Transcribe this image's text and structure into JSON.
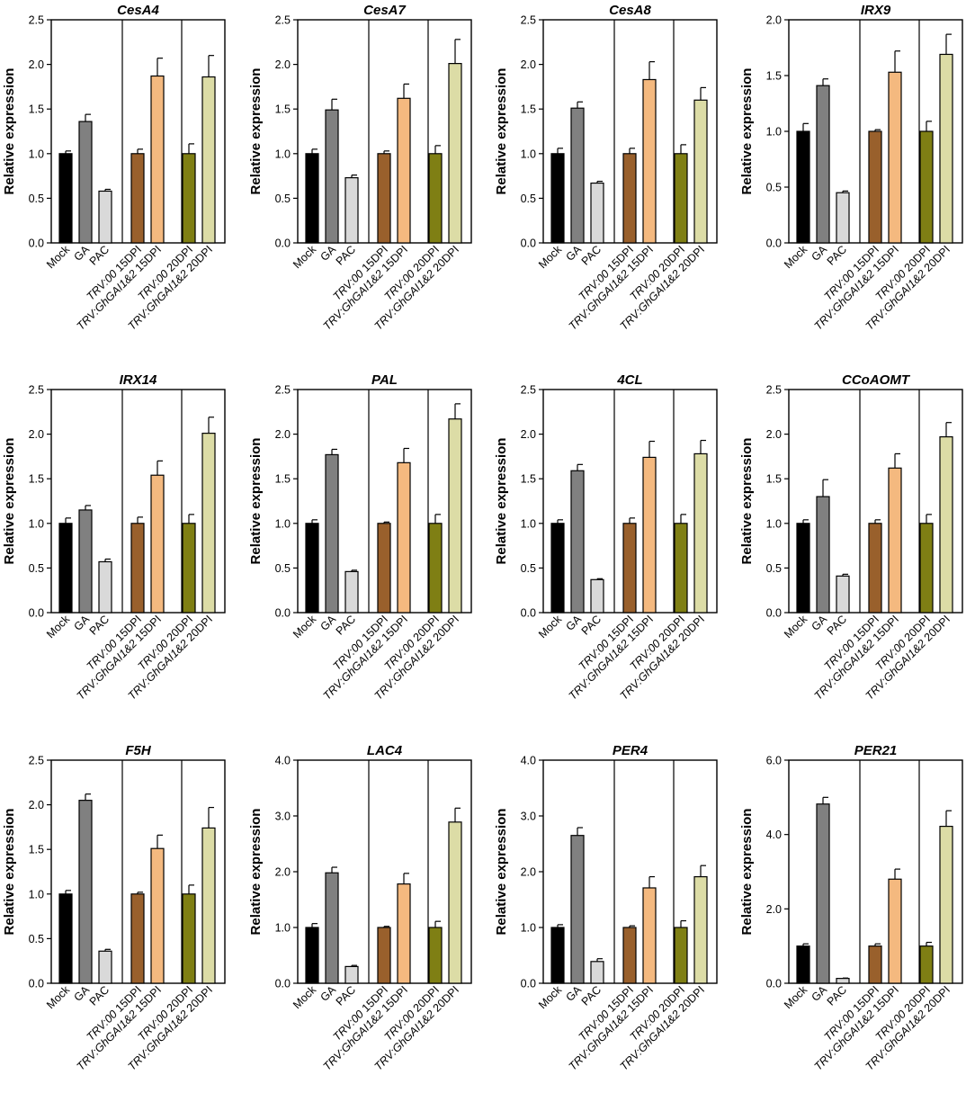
{
  "figure": {
    "ylabel": "Relative expression",
    "categories": [
      "Mock",
      "GA",
      "PAC",
      "TRV:00 15DPI",
      "TRV:GhGAI1&2 15DPI",
      "TRV:00 20DPI",
      "TRV:GhGAI1&2 20DPI"
    ],
    "category_italic_part": [
      "",
      "",
      "",
      "TRV:00",
      "TRV:GhGAI1&2",
      "TRV:00",
      "TRV:GhGAI1&2"
    ],
    "category_plain_part": [
      "Mock",
      "GA",
      "PAC",
      " 15DPI",
      " 15DPI",
      " 20DPI",
      " 20DPI"
    ],
    "colors": [
      "#000000",
      "#808080",
      "#d9d9d9",
      "#99602c",
      "#f4b97f",
      "#7f7f14",
      "#dcdca6"
    ]
  },
  "chart_data": [
    {
      "type": "bar",
      "title": "CesA4",
      "ylabel": "Relative expression",
      "ylim": [
        0,
        2.5
      ],
      "ticks": [
        "0.0",
        "0.5",
        "1.0",
        "1.5",
        "2.0",
        "2.5"
      ],
      "categories": [
        "Mock",
        "GA",
        "PAC",
        "TRV:00 15DPI",
        "TRV:GhGAI1&2 15DPI",
        "TRV:00 20DPI",
        "TRV:GhGAI1&2 20DPI"
      ],
      "values": [
        1.0,
        1.36,
        0.58,
        1.0,
        1.87,
        1.0,
        1.86
      ],
      "errors": [
        0.03,
        0.08,
        0.02,
        0.05,
        0.2,
        0.11,
        0.24
      ]
    },
    {
      "type": "bar",
      "title": "CesA7",
      "ylabel": "Relative expression",
      "ylim": [
        0,
        2.5
      ],
      "ticks": [
        "0.0",
        "0.5",
        "1.0",
        "1.5",
        "2.0",
        "2.5"
      ],
      "categories": [
        "Mock",
        "GA",
        "PAC",
        "TRV:00 15DPI",
        "TRV:GhGAI1&2 15DPI",
        "TRV:00 20DPI",
        "TRV:GhGAI1&2 20DPI"
      ],
      "values": [
        1.0,
        1.49,
        0.73,
        1.0,
        1.62,
        1.0,
        2.01
      ],
      "errors": [
        0.05,
        0.12,
        0.03,
        0.03,
        0.16,
        0.09,
        0.27
      ]
    },
    {
      "type": "bar",
      "title": "CesA8",
      "ylabel": "Relative expression",
      "ylim": [
        0,
        2.5
      ],
      "ticks": [
        "0.0",
        "0.5",
        "1.0",
        "1.5",
        "2.0",
        "2.5"
      ],
      "categories": [
        "Mock",
        "GA",
        "PAC",
        "TRV:00 15DPI",
        "TRV:GhGAI1&2 15DPI",
        "TRV:00 20DPI",
        "TRV:GhGAI1&2 20DPI"
      ],
      "values": [
        1.0,
        1.51,
        0.67,
        1.0,
        1.83,
        1.0,
        1.6
      ],
      "errors": [
        0.06,
        0.07,
        0.02,
        0.06,
        0.2,
        0.1,
        0.14
      ]
    },
    {
      "type": "bar",
      "title": "IRX9",
      "ylabel": "Relative expression",
      "ylim": [
        0,
        2.0
      ],
      "ticks": [
        "0.0",
        "0.5",
        "1.0",
        "1.5",
        "2.0"
      ],
      "categories": [
        "Mock",
        "GA",
        "PAC",
        "TRV:00 15DPI",
        "TRV:GhGAI1&2 15DPI",
        "TRV:00 20DPI",
        "TRV:GhGAI1&2 20DPI"
      ],
      "values": [
        1.0,
        1.41,
        0.45,
        1.0,
        1.53,
        1.0,
        1.69
      ],
      "errors": [
        0.07,
        0.06,
        0.015,
        0.015,
        0.19,
        0.09,
        0.18
      ]
    },
    {
      "type": "bar",
      "title": "IRX14",
      "ylabel": "Relative expression",
      "ylim": [
        0,
        2.5
      ],
      "ticks": [
        "0.0",
        "0.5",
        "1.0",
        "1.5",
        "2.0",
        "2.5"
      ],
      "categories": [
        "Mock",
        "GA",
        "PAC",
        "TRV:00 15DPI",
        "TRV:GhGAI1&2 15DPI",
        "TRV:00 20DPI",
        "TRV:GhGAI1&2 20DPI"
      ],
      "values": [
        1.0,
        1.15,
        0.57,
        1.0,
        1.54,
        1.0,
        2.01
      ],
      "errors": [
        0.06,
        0.05,
        0.03,
        0.07,
        0.16,
        0.1,
        0.18
      ]
    },
    {
      "type": "bar",
      "title": "PAL",
      "ylabel": "Relative expression",
      "ylim": [
        0,
        2.5
      ],
      "ticks": [
        "0.0",
        "0.5",
        "1.0",
        "1.5",
        "2.0",
        "2.5"
      ],
      "categories": [
        "Mock",
        "GA",
        "PAC",
        "TRV:00 15DPI",
        "TRV:GhGAI1&2 15DPI",
        "TRV:00 20DPI",
        "TRV:GhGAI1&2 20DPI"
      ],
      "values": [
        1.0,
        1.77,
        0.46,
        1.0,
        1.68,
        1.0,
        2.17
      ],
      "errors": [
        0.04,
        0.06,
        0.015,
        0.015,
        0.16,
        0.1,
        0.17
      ]
    },
    {
      "type": "bar",
      "title": "4CL",
      "ylabel": "Relative expression",
      "ylim": [
        0,
        2.5
      ],
      "ticks": [
        "0.0",
        "0.5",
        "1.0",
        "1.5",
        "2.0",
        "2.5"
      ],
      "categories": [
        "Mock",
        "GA",
        "PAC",
        "TRV:00 15DPI",
        "TRV:GhGAI1&2 15DPI",
        "TRV:00 20DPI",
        "TRV:GhGAI1&2 20DPI"
      ],
      "values": [
        1.0,
        1.59,
        0.37,
        1.0,
        1.74,
        1.0,
        1.78
      ],
      "errors": [
        0.04,
        0.07,
        0.01,
        0.06,
        0.18,
        0.1,
        0.15
      ]
    },
    {
      "type": "bar",
      "title": "CCoAOMT",
      "ylabel": "Relative expression",
      "ylim": [
        0,
        2.5
      ],
      "ticks": [
        "0.0",
        "0.5",
        "1.0",
        "1.5",
        "2.0",
        "2.5"
      ],
      "categories": [
        "Mock",
        "GA",
        "PAC",
        "TRV:00 15DPI",
        "TRV:GhGAI1&2 15DPI",
        "TRV:00 20DPI",
        "TRV:GhGAI1&2 20DPI"
      ],
      "values": [
        1.0,
        1.3,
        0.41,
        1.0,
        1.62,
        1.0,
        1.97
      ],
      "errors": [
        0.04,
        0.19,
        0.02,
        0.04,
        0.16,
        0.1,
        0.16
      ]
    },
    {
      "type": "bar",
      "title": "F5H",
      "ylabel": "Relative expression",
      "ylim": [
        0,
        2.5
      ],
      "ticks": [
        "0.0",
        "0.5",
        "1.0",
        "1.5",
        "2.0",
        "2.5"
      ],
      "categories": [
        "Mock",
        "GA",
        "PAC",
        "TRV:00 15DPI",
        "TRV:GhGAI1&2 15DPI",
        "TRV:00 20DPI",
        "TRV:GhGAI1&2 20DPI"
      ],
      "values": [
        1.0,
        2.05,
        0.36,
        1.0,
        1.51,
        1.0,
        1.74
      ],
      "errors": [
        0.04,
        0.07,
        0.02,
        0.02,
        0.15,
        0.1,
        0.23
      ]
    },
    {
      "type": "bar",
      "title": "LAC4",
      "ylabel": "Relative expression",
      "ylim": [
        0,
        4.0
      ],
      "ticks": [
        "0.0",
        "1.0",
        "2.0",
        "3.0",
        "4.0"
      ],
      "categories": [
        "Mock",
        "GA",
        "PAC",
        "TRV:00 15DPI",
        "TRV:GhGAI1&2 15DPI",
        "TRV:00 20DPI",
        "TRV:GhGAI1&2 20DPI"
      ],
      "values": [
        1.0,
        1.98,
        0.3,
        1.0,
        1.78,
        1.0,
        2.89
      ],
      "errors": [
        0.07,
        0.1,
        0.02,
        0.02,
        0.19,
        0.11,
        0.25
      ]
    },
    {
      "type": "bar",
      "title": "PER4",
      "ylabel": "Relative expression",
      "ylim": [
        0,
        4.0
      ],
      "ticks": [
        "0.0",
        "1.0",
        "2.0",
        "3.0",
        "4.0"
      ],
      "categories": [
        "Mock",
        "GA",
        "PAC",
        "TRV:00 15DPI",
        "TRV:GhGAI1&2 15DPI",
        "TRV:00 20DPI",
        "TRV:GhGAI1&2 20DPI"
      ],
      "values": [
        1.0,
        2.65,
        0.39,
        1.0,
        1.71,
        1.0,
        1.91
      ],
      "errors": [
        0.05,
        0.14,
        0.05,
        0.03,
        0.2,
        0.12,
        0.2
      ]
    },
    {
      "type": "bar",
      "title": "PER21",
      "ylabel": "Relative expression",
      "ylim": [
        0,
        6.0
      ],
      "ticks": [
        "0.0",
        "2.0",
        "4.0",
        "6.0"
      ],
      "categories": [
        "Mock",
        "GA",
        "PAC",
        "TRV:00 15DPI",
        "TRV:GhGAI1&2 15DPI",
        "TRV:00 20DPI",
        "TRV:GhGAI1&2 20DPI"
      ],
      "values": [
        1.0,
        4.82,
        0.13,
        1.0,
        2.8,
        1.0,
        4.22
      ],
      "errors": [
        0.06,
        0.18,
        0.01,
        0.06,
        0.27,
        0.1,
        0.42
      ]
    }
  ]
}
